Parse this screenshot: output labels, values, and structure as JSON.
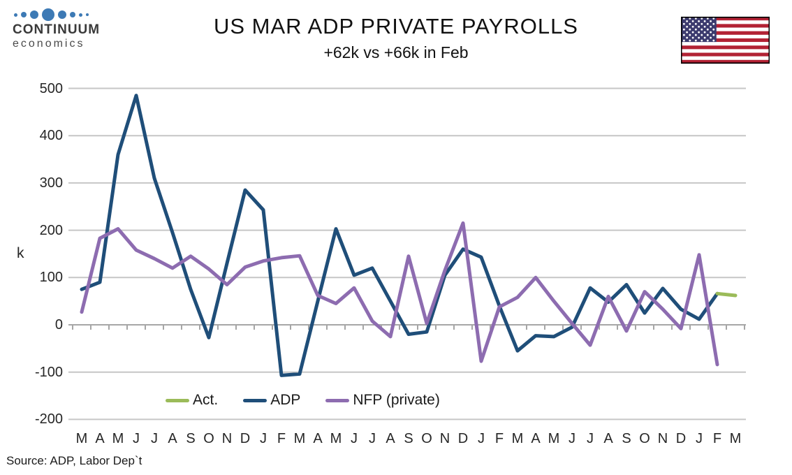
{
  "header": {
    "logo": {
      "brand": "CONTINUUM",
      "sub": "economics",
      "dot_color": "#3d7ab5",
      "dot_sizes": [
        5,
        8,
        12,
        18,
        12,
        8,
        5,
        4
      ]
    },
    "title": "US MAR ADP PRIVATE PAYROLLS",
    "subtitle": "+62k vs +66k in Feb",
    "flag": {
      "name": "us-flag",
      "stripe_red": "#b22234",
      "canton_blue": "#3c3b6e"
    }
  },
  "source": "Source: ADP, Labor Dep`t",
  "legend": [
    {
      "label": "Act.",
      "color": "#9bbb59"
    },
    {
      "label": "ADP",
      "color": "#1f4e79"
    },
    {
      "label": "NFP (private)",
      "color": "#8d6cb0"
    }
  ],
  "chart_data": {
    "type": "line",
    "title": "US MAR ADP PRIVATE PAYROLLS",
    "subtitle": "+62k vs +66k in Feb",
    "ylabel": "k",
    "xlabel": "",
    "ylim": [
      -200,
      500
    ],
    "yticks": [
      500,
      400,
      300,
      200,
      100,
      0,
      -100,
      -200
    ],
    "grid": true,
    "legend_position": "bottom",
    "categories": [
      "M",
      "A",
      "M",
      "J",
      "J",
      "A",
      "S",
      "O",
      "N",
      "D",
      "J",
      "F",
      "M",
      "A",
      "M",
      "J",
      "J",
      "A",
      "S",
      "O",
      "N",
      "D",
      "J",
      "F",
      "M",
      "A",
      "M",
      "J",
      "J",
      "A",
      "S",
      "O",
      "N",
      "D",
      "J",
      "F",
      "M"
    ],
    "series": [
      {
        "name": "ADP",
        "color": "#1f4e79",
        "values": [
          75,
          90,
          360,
          485,
          310,
          195,
          75,
          -27,
          130,
          285,
          243,
          -107,
          -104,
          50,
          203,
          105,
          120,
          50,
          -20,
          -15,
          105,
          160,
          143,
          40,
          -55,
          -23,
          -25,
          -5,
          78,
          48,
          85,
          25,
          77,
          33,
          12,
          66,
          null
        ]
      },
      {
        "name": "NFP (private)",
        "color": "#8d6cb0",
        "values": [
          27,
          183,
          203,
          158,
          140,
          120,
          145,
          118,
          85,
          122,
          135,
          142,
          146,
          62,
          45,
          78,
          8,
          -25,
          145,
          3,
          115,
          215,
          -77,
          38,
          58,
          100,
          50,
          3,
          -43,
          60,
          -13,
          70,
          33,
          -8,
          148,
          -84,
          null
        ]
      },
      {
        "name": "Act.",
        "color": "#9bbb59",
        "values": [
          null,
          null,
          null,
          null,
          null,
          null,
          null,
          null,
          null,
          null,
          null,
          null,
          null,
          null,
          null,
          null,
          null,
          null,
          null,
          null,
          null,
          null,
          null,
          null,
          null,
          null,
          null,
          null,
          null,
          null,
          null,
          null,
          null,
          null,
          null,
          66,
          62
        ]
      }
    ]
  }
}
